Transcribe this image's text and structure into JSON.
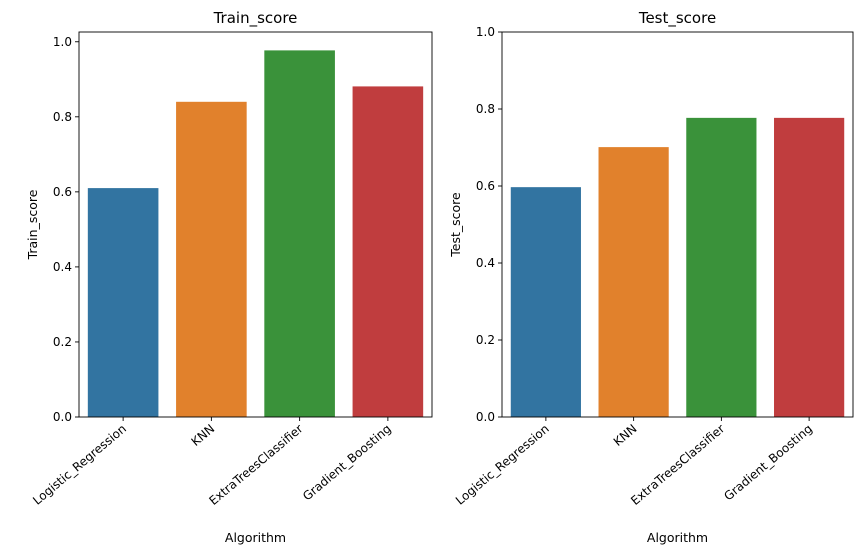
{
  "chart_data": [
    {
      "type": "bar",
      "title": "Train_score",
      "xlabel": "Algorithm",
      "ylabel": "Train_score",
      "categories": [
        "Logistic_Regression",
        "KNN",
        "ExtraTreesClassifier",
        "Gradient_Boosting"
      ],
      "values": [
        0.61,
        0.84,
        0.977,
        0.881
      ],
      "colors": [
        "#3274a1",
        "#e1812c",
        "#3a923a",
        "#c03d3e"
      ],
      "yticks": [
        "0.0",
        "0.2",
        "0.4",
        "0.6",
        "0.8",
        "1.0"
      ],
      "ylim": [
        0,
        1.026
      ],
      "grid": false,
      "legend": "none"
    },
    {
      "type": "bar",
      "title": "Test_score",
      "xlabel": "Algorithm",
      "ylabel": "Test_score",
      "categories": [
        "Logistic_Regression",
        "KNN",
        "ExtraTreesClassifier",
        "Gradient_Boosting"
      ],
      "values": [
        0.597,
        0.701,
        0.777,
        0.777
      ],
      "colors": [
        "#3274a1",
        "#e1812c",
        "#3a923a",
        "#c03d3e"
      ],
      "yticks": [
        "0.0",
        "0.2",
        "0.4",
        "0.6",
        "0.8",
        "1.0"
      ],
      "ylim": [
        0,
        1.0
      ],
      "grid": false,
      "legend": "none"
    }
  ]
}
